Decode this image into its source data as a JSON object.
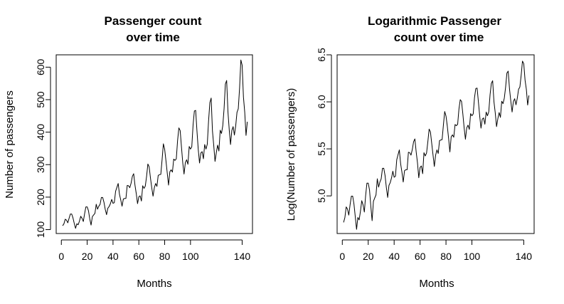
{
  "chart_data": [
    {
      "type": "line",
      "title_lines": [
        "Passenger count",
        "over time"
      ],
      "xlabel": "Months",
      "ylabel": "Number of passengers",
      "xticks": [
        0,
        20,
        40,
        60,
        80,
        100,
        140
      ],
      "yticks": [
        100,
        200,
        300,
        400,
        500,
        600
      ],
      "xlim": [
        -4,
        148
      ],
      "ylim": [
        88,
        638
      ],
      "grid": false,
      "color": "#000000",
      "x": [
        1,
        2,
        3,
        4,
        5,
        6,
        7,
        8,
        9,
        10,
        11,
        12,
        13,
        14,
        15,
        16,
        17,
        18,
        19,
        20,
        21,
        22,
        23,
        24,
        25,
        26,
        27,
        28,
        29,
        30,
        31,
        32,
        33,
        34,
        35,
        36,
        37,
        38,
        39,
        40,
        41,
        42,
        43,
        44,
        45,
        46,
        47,
        48,
        49,
        50,
        51,
        52,
        53,
        54,
        55,
        56,
        57,
        58,
        59,
        60,
        61,
        62,
        63,
        64,
        65,
        66,
        67,
        68,
        69,
        70,
        71,
        72,
        73,
        74,
        75,
        76,
        77,
        78,
        79,
        80,
        81,
        82,
        83,
        84,
        85,
        86,
        87,
        88,
        89,
        90,
        91,
        92,
        93,
        94,
        95,
        96,
        97,
        98,
        99,
        100,
        101,
        102,
        103,
        104,
        105,
        106,
        107,
        108,
        109,
        110,
        111,
        112,
        113,
        114,
        115,
        116,
        117,
        118,
        119,
        120,
        121,
        122,
        123,
        124,
        125,
        126,
        127,
        128,
        129,
        130,
        131,
        132,
        133,
        134,
        135,
        136,
        137,
        138,
        139,
        140,
        141,
        142,
        143,
        144
      ],
      "y": [
        112,
        118,
        132,
        129,
        121,
        135,
        148,
        148,
        136,
        119,
        104,
        118,
        115,
        126,
        141,
        135,
        125,
        149,
        170,
        170,
        158,
        133,
        114,
        140,
        145,
        150,
        178,
        163,
        172,
        178,
        199,
        199,
        184,
        162,
        146,
        166,
        171,
        180,
        193,
        181,
        183,
        218,
        230,
        242,
        209,
        191,
        172,
        194,
        196,
        196,
        236,
        235,
        229,
        243,
        264,
        272,
        237,
        211,
        180,
        201,
        204,
        188,
        235,
        227,
        234,
        264,
        302,
        293,
        259,
        229,
        203,
        229,
        242,
        233,
        267,
        269,
        270,
        315,
        364,
        347,
        312,
        274,
        237,
        278,
        284,
        277,
        317,
        313,
        318,
        374,
        413,
        405,
        355,
        306,
        271,
        306,
        315,
        301,
        356,
        348,
        355,
        422,
        465,
        467,
        404,
        347,
        305,
        336,
        340,
        318,
        362,
        348,
        363,
        435,
        491,
        505,
        404,
        359,
        310,
        337,
        360,
        342,
        406,
        396,
        420,
        472,
        548,
        559,
        463,
        407,
        362,
        405,
        417,
        391,
        419,
        461,
        472,
        535,
        622,
        606,
        508,
        461,
        390,
        432
      ]
    },
    {
      "type": "line",
      "title_lines": [
        "Logarithmic Passenger",
        "count over time"
      ],
      "xlabel": "Months",
      "ylabel": "Log(Number of passengers)",
      "xticks": [
        0,
        20,
        40,
        60,
        80,
        100,
        140
      ],
      "yticks": [
        5.0,
        5.5,
        6.0,
        6.5
      ],
      "ytick_labels": [
        "5.0",
        "5.5",
        "6.0",
        "6.5"
      ],
      "xlim": [
        -4,
        148
      ],
      "ylim": [
        4.6,
        6.5
      ],
      "grid": false,
      "color": "#000000",
      "transform": "log",
      "source_series": 0
    }
  ]
}
